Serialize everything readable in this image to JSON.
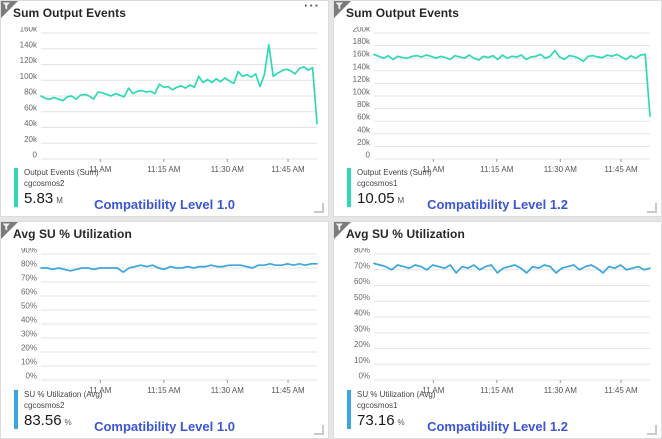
{
  "colors": {
    "teal_series": "#2fd9b8",
    "blue_series": "#3aa6e0",
    "footer_text": "#3b55d6",
    "gridline": "#e3e3e3",
    "tile_background": "#ffffff"
  },
  "tiles": [
    {
      "title": "Sum Output Events",
      "menu": "···",
      "legend": {
        "metric": "Output Events (Sum)",
        "resource": "cgcosmos2",
        "value": "5.83",
        "unit": "M"
      },
      "footer": "Compatibility Level 1.0"
    },
    {
      "title": "Sum Output Events",
      "legend": {
        "metric": "Output Events (Sum)",
        "resource": "cgcosmos1",
        "value": "10.05",
        "unit": "M"
      },
      "footer": "Compatibility Level 1.2"
    },
    {
      "title": "Avg SU % Utilization",
      "legend": {
        "metric": "SU % Utilization (Avg)",
        "resource": "cgcosmos2",
        "value": "83.56",
        "unit": "%"
      },
      "footer": "Compatibility Level 1.0"
    },
    {
      "title": "Avg SU % Utilization",
      "legend": {
        "metric": "SU % Utilization (Avg)",
        "resource": "cgcosmos1",
        "value": "73.16",
        "unit": "%"
      },
      "footer": "Compatibility Level 1.2"
    }
  ],
  "chart_data": [
    {
      "type": "line",
      "title": "Sum Output Events",
      "color": "#2fd9b8",
      "ylim": [
        0,
        160
      ],
      "unit": "k",
      "y_labels": [
        "160k",
        "140k",
        "120k",
        "100k",
        "80k",
        "60k",
        "40k",
        "20k",
        "0"
      ],
      "x_tick_labels": [
        "11 AM",
        "11:15 AM",
        "11:30 AM",
        "11:45 AM"
      ],
      "x_tick_pos": [
        0.215,
        0.445,
        0.675,
        0.895
      ],
      "series": [
        {
          "name": "Output Events (Sum) cgcosmos2",
          "values": [
            80,
            77,
            76,
            78,
            76,
            74,
            79,
            80,
            76,
            81,
            82,
            80,
            76,
            85,
            84,
            82,
            80,
            83,
            81,
            79,
            90,
            83,
            86,
            87,
            85,
            86,
            83,
            95,
            91,
            92,
            88,
            91,
            93,
            90,
            94,
            91,
            105,
            97,
            101,
            97,
            102,
            98,
            103,
            99,
            96,
            111,
            105,
            107,
            104,
            108,
            92,
            107,
            145,
            105,
            109,
            112,
            114,
            112,
            108,
            115,
            117,
            113,
            116,
            45
          ]
        }
      ]
    },
    {
      "type": "line",
      "title": "Sum Output Events",
      "color": "#2fd9b8",
      "ylim": [
        0,
        200
      ],
      "unit": "k",
      "y_labels": [
        "200k",
        "180k",
        "160k",
        "140k",
        "120k",
        "100k",
        "80k",
        "60k",
        "40k",
        "20k",
        "0"
      ],
      "x_tick_labels": [
        "11 AM",
        "11:15 AM",
        "11:30 AM",
        "11:45 AM"
      ],
      "x_tick_pos": [
        0.215,
        0.445,
        0.675,
        0.895
      ],
      "series": [
        {
          "name": "Output Events (Sum) cgcosmos1",
          "values": [
            166,
            163,
            160,
            164,
            158,
            163,
            161,
            160,
            163,
            164,
            162,
            165,
            163,
            160,
            163,
            161,
            158,
            164,
            162,
            160,
            165,
            160,
            157,
            163,
            161,
            164,
            158,
            165,
            160,
            163,
            162,
            165,
            158,
            162,
            163,
            166,
            160,
            163,
            172,
            162,
            158,
            164,
            163,
            160,
            155,
            163,
            164,
            162,
            161,
            165,
            163,
            166,
            162,
            158,
            164,
            160,
            165,
            166,
            68
          ]
        }
      ]
    },
    {
      "type": "line",
      "title": "Avg SU % Utilization",
      "color": "#3aa6e0",
      "ylim": [
        0,
        90
      ],
      "unit": "%",
      "y_labels": [
        "90%",
        "80%",
        "70%",
        "60%",
        "50%",
        "40%",
        "30%",
        "20%",
        "10%",
        "0%"
      ],
      "x_tick_labels": [
        "11 AM",
        "11:15 AM",
        "11:30 AM",
        "11:45 AM"
      ],
      "x_tick_pos": [
        0.215,
        0.445,
        0.675,
        0.895
      ],
      "series": [
        {
          "name": "SU % Utilization (Avg) cgcosmos2",
          "values": [
            80,
            80,
            79,
            80,
            79,
            78,
            79,
            80,
            80,
            79,
            80,
            80,
            80,
            80,
            77,
            80,
            81,
            82,
            81,
            82,
            80,
            79,
            81,
            80,
            80,
            81,
            80,
            81,
            81,
            82,
            81,
            81,
            82,
            82,
            82,
            81,
            80,
            82,
            82,
            83,
            82,
            82,
            83,
            82,
            83,
            82,
            83,
            83
          ]
        }
      ]
    },
    {
      "type": "line",
      "title": "Avg SU % Utilization",
      "color": "#3aa6e0",
      "ylim": [
        0,
        80
      ],
      "unit": "%",
      "y_labels": [
        "80%",
        "70%",
        "60%",
        "50%",
        "40%",
        "30%",
        "20%",
        "10%",
        "0%"
      ],
      "x_tick_labels": [
        "11 AM",
        "11:15 AM",
        "11:30 AM",
        "11:45 AM"
      ],
      "x_tick_pos": [
        0.215,
        0.445,
        0.675,
        0.895
      ],
      "series": [
        {
          "name": "SU % Utilization (Avg) cgcosmos1",
          "values": [
            74,
            73,
            72,
            70,
            73,
            72,
            71,
            73,
            72,
            70,
            73,
            72,
            71,
            73,
            68,
            72,
            71,
            73,
            70,
            72,
            73,
            68,
            71,
            72,
            73,
            71,
            68,
            72,
            71,
            73,
            72,
            68,
            71,
            72,
            73,
            70,
            72,
            73,
            71,
            68,
            72,
            71,
            73,
            70,
            71,
            72,
            70,
            71
          ]
        }
      ]
    }
  ]
}
